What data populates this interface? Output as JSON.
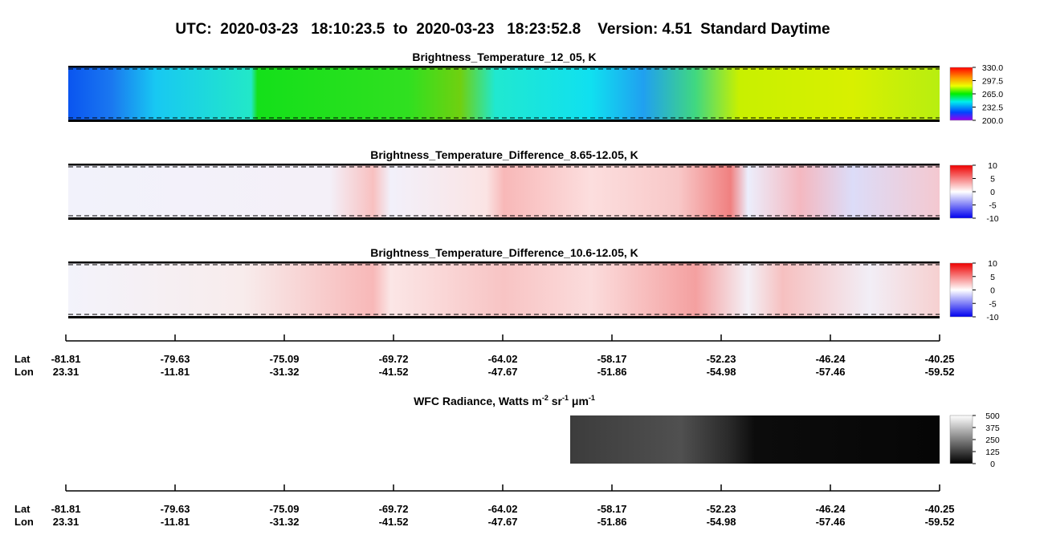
{
  "title": "UTC:  2020-03-23   18:10:23.5  to  2020-03-23   18:23:52.8    Version: 4.51  Standard Daytime",
  "panels": [
    {
      "title": "Brightness_Temperature_12_05, K",
      "colorbar": {
        "lim": [
          200,
          330
        ],
        "ticks": [
          {
            "value": 330,
            "label": "330.0"
          },
          {
            "value": 297.5,
            "label": "297.5"
          },
          {
            "value": 265,
            "label": "265.0"
          },
          {
            "value": 232.5,
            "label": "232.5"
          },
          {
            "value": 200,
            "label": "200.0"
          }
        ]
      }
    },
    {
      "title": "Brightness_Temperature_Difference_8.65-12.05, K",
      "colorbar": {
        "lim": [
          -10,
          10
        ],
        "ticks": [
          10,
          5,
          0,
          -5,
          -10
        ]
      }
    },
    {
      "title": "Brightness_Temperature_Difference_10.6-12.05, K",
      "colorbar": {
        "lim": [
          -10,
          10
        ],
        "ticks": [
          10,
          5,
          0,
          -5,
          -10
        ]
      }
    },
    {
      "title_parts": [
        "WFC Radiance, Watts m",
        "-2",
        " sr",
        "-1",
        " μm",
        "-1"
      ],
      "colorbar": {
        "lim": [
          0,
          500
        ],
        "ticks": [
          500,
          375,
          250,
          125,
          0
        ]
      }
    }
  ],
  "axis": {
    "lat_label": "Lat",
    "lon_label": "Lon",
    "lat": [
      -81.81,
      -79.63,
      -75.09,
      -69.72,
      -64.02,
      -58.17,
      -52.23,
      -46.24,
      -40.25
    ],
    "lon": [
      23.31,
      -11.81,
      -31.32,
      -41.52,
      -47.67,
      -51.86,
      -54.98,
      -57.46,
      -59.52
    ]
  }
}
